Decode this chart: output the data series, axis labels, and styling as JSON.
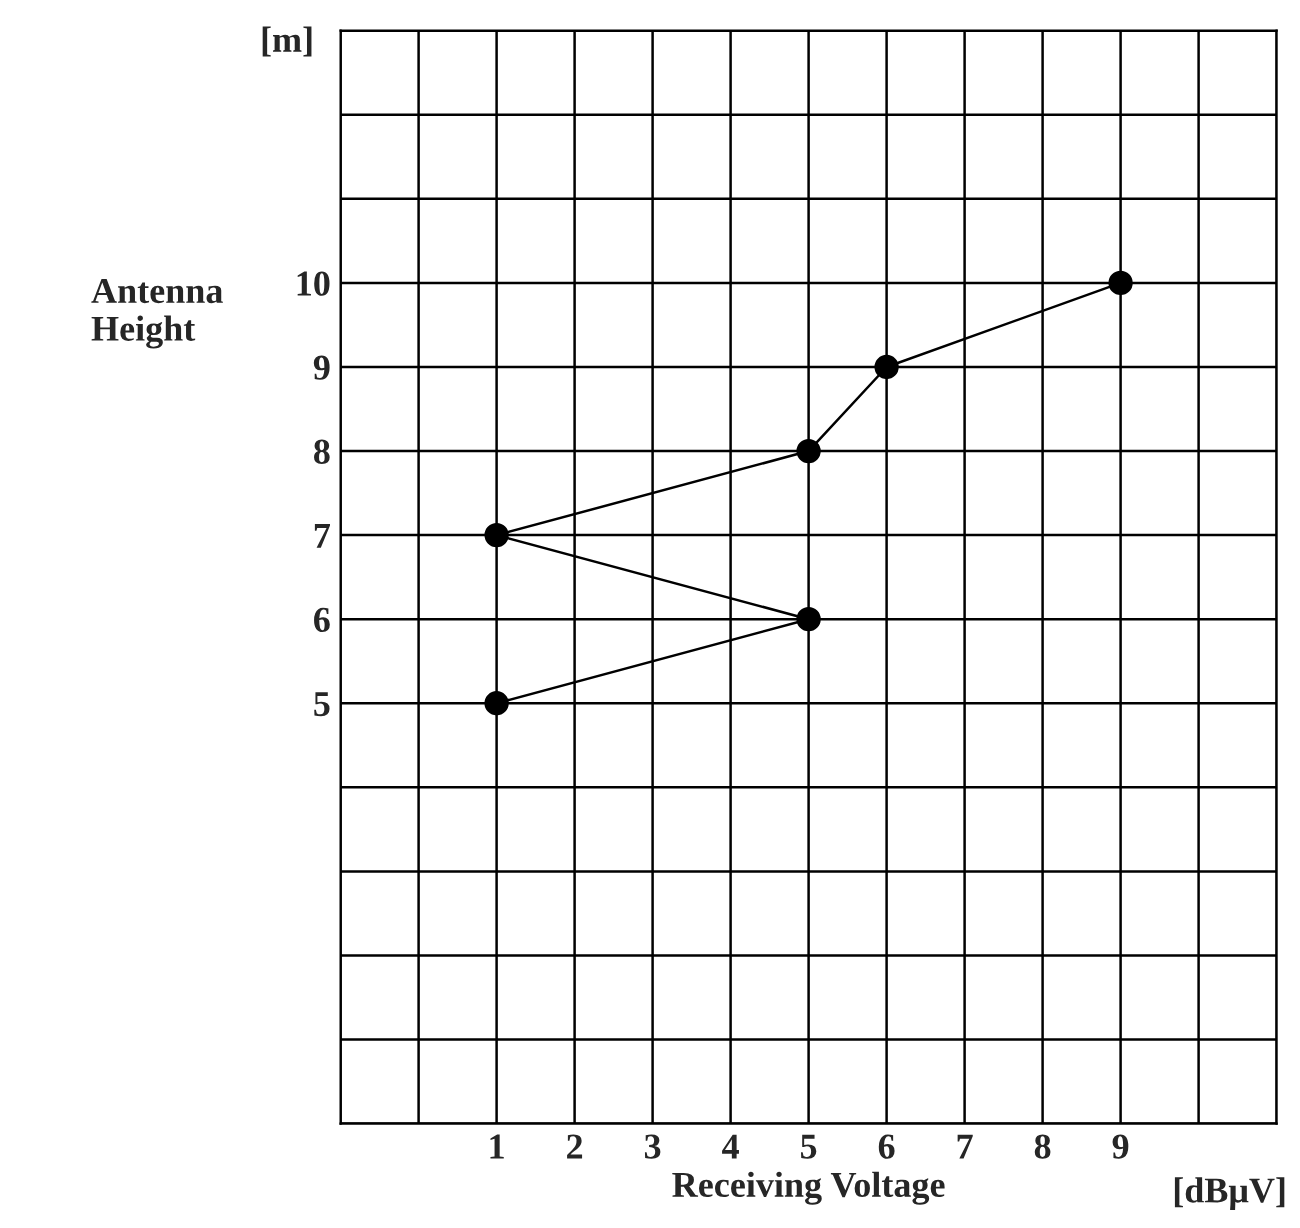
{
  "chart_data": {
    "type": "line",
    "xlabel": "Receiving Voltage",
    "ylabel": "Antenna\nHeight",
    "annotations": [
      "[m]",
      "[dBμV]"
    ],
    "series": [
      {
        "color": "#000000",
        "x": [
          1,
          5,
          1,
          5,
          6,
          9
        ],
        "values": [
          5,
          6,
          7,
          8,
          9,
          10
        ]
      }
    ],
    "marker": "circle",
    "line_style": "solid",
    "grid": true,
    "legend": false,
    "xlim": [
      -1,
      11
    ],
    "ylim": [
      0,
      13
    ],
    "xticks": [
      {
        "value": -1,
        "label": null
      },
      {
        "value": 0,
        "label": null
      },
      1,
      2,
      3,
      4,
      5,
      6,
      7,
      8,
      9,
      {
        "value": 10,
        "label": null
      },
      {
        "value": 11,
        "label": null
      }
    ],
    "yticks": [
      {
        "value": 0,
        "label": null
      },
      {
        "value": 1,
        "label": null
      },
      {
        "value": 2,
        "label": null
      },
      {
        "value": 3,
        "label": null
      },
      {
        "value": 4,
        "label": null
      },
      5,
      6,
      7,
      8,
      9,
      10,
      {
        "value": 11,
        "label": null
      },
      {
        "value": 12,
        "label": null
      },
      {
        "value": 13,
        "label": null
      }
    ]
  }
}
